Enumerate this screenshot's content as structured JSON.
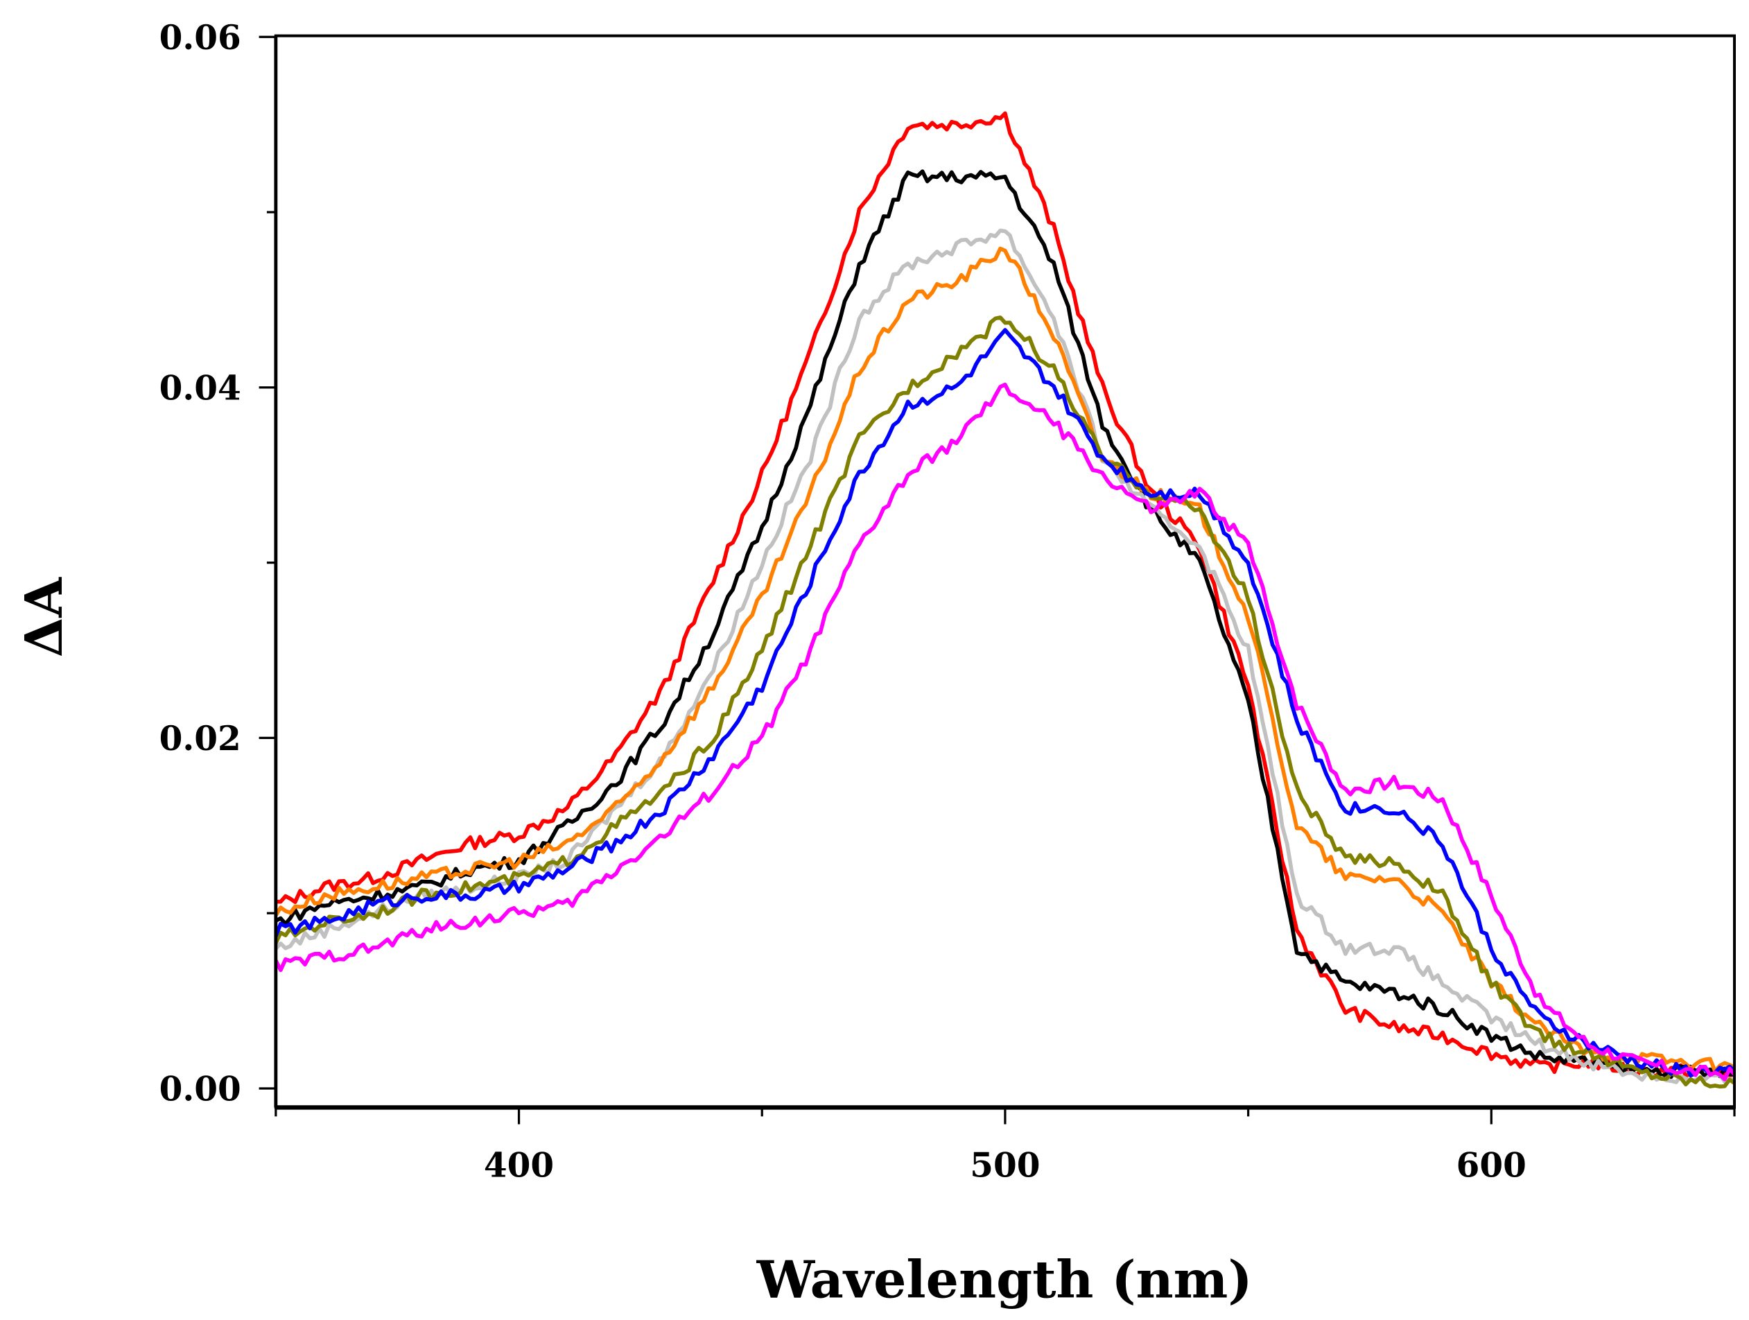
{
  "chart_data": {
    "type": "line",
    "title": "",
    "xlabel": "Wavelength (nm)",
    "ylabel": "ΔA",
    "xlim": [
      350,
      650
    ],
    "ylim": [
      -0.002,
      0.06
    ],
    "x_ticks": [
      400,
      500,
      600
    ],
    "x_tick_labels": [
      "400",
      "500",
      "600"
    ],
    "y_ticks": [
      0.0,
      0.02,
      0.04,
      0.06
    ],
    "y_tick_labels": [
      "0.00",
      "0.02",
      "0.04",
      "0.06"
    ],
    "grid": false,
    "legend": "none",
    "x": [
      350,
      360,
      370,
      380,
      390,
      400,
      410,
      420,
      430,
      440,
      450,
      460,
      470,
      480,
      490,
      500,
      510,
      520,
      530,
      540,
      550,
      560,
      570,
      580,
      590,
      600,
      610,
      620,
      630,
      640,
      650
    ],
    "series": [
      {
        "name": "red",
        "color": "#ff0000",
        "values": [
          0.0105,
          0.0115,
          0.012,
          0.013,
          0.014,
          0.0145,
          0.016,
          0.019,
          0.023,
          0.029,
          0.035,
          0.042,
          0.05,
          0.055,
          0.055,
          0.0555,
          0.049,
          0.04,
          0.034,
          0.031,
          0.023,
          0.009,
          0.0045,
          0.0035,
          0.003,
          0.002,
          0.0012,
          0.0015,
          0.001,
          0.001,
          0.0008
        ]
      },
      {
        "name": "black",
        "color": "#000000",
        "values": [
          0.0095,
          0.0105,
          0.011,
          0.0115,
          0.0125,
          0.013,
          0.015,
          0.0175,
          0.021,
          0.026,
          0.032,
          0.039,
          0.047,
          0.052,
          0.052,
          0.052,
          0.047,
          0.038,
          0.033,
          0.03,
          0.022,
          0.008,
          0.006,
          0.0055,
          0.0045,
          0.003,
          0.0018,
          0.0015,
          0.001,
          0.001,
          0.0008
        ]
      },
      {
        "name": "gray",
        "color": "#c0c0c0",
        "values": [
          0.008,
          0.009,
          0.01,
          0.011,
          0.0115,
          0.012,
          0.013,
          0.016,
          0.019,
          0.024,
          0.03,
          0.036,
          0.044,
          0.047,
          0.048,
          0.049,
          0.044,
          0.036,
          0.033,
          0.031,
          0.025,
          0.011,
          0.008,
          0.008,
          0.006,
          0.004,
          0.0025,
          0.0015,
          0.0008,
          0.0005,
          0.0005
        ]
      },
      {
        "name": "orange",
        "color": "#ff8000",
        "values": [
          0.01,
          0.011,
          0.0115,
          0.012,
          0.0125,
          0.013,
          0.014,
          0.016,
          0.019,
          0.023,
          0.028,
          0.034,
          0.041,
          0.045,
          0.046,
          0.048,
          0.043,
          0.036,
          0.034,
          0.033,
          0.027,
          0.015,
          0.012,
          0.012,
          0.01,
          0.006,
          0.0035,
          0.002,
          0.0018,
          0.0015,
          0.0012
        ]
      },
      {
        "name": "olive",
        "color": "#808000",
        "values": [
          0.0085,
          0.0095,
          0.01,
          0.011,
          0.0115,
          0.012,
          0.013,
          0.015,
          0.017,
          0.02,
          0.025,
          0.031,
          0.037,
          0.04,
          0.042,
          0.044,
          0.041,
          0.036,
          0.034,
          0.033,
          0.028,
          0.017,
          0.013,
          0.013,
          0.011,
          0.006,
          0.003,
          0.002,
          0.001,
          0.0005,
          0.0003
        ]
      },
      {
        "name": "blue",
        "color": "#0000ff",
        "values": [
          0.009,
          0.0095,
          0.0105,
          0.011,
          0.011,
          0.0115,
          0.0125,
          0.014,
          0.016,
          0.019,
          0.023,
          0.029,
          0.035,
          0.039,
          0.04,
          0.043,
          0.04,
          0.036,
          0.034,
          0.034,
          0.03,
          0.021,
          0.016,
          0.016,
          0.014,
          0.008,
          0.004,
          0.0025,
          0.0015,
          0.001,
          0.001
        ]
      },
      {
        "name": "magenta",
        "color": "#ff00ff",
        "values": [
          0.007,
          0.0075,
          0.008,
          0.009,
          0.0095,
          0.01,
          0.0105,
          0.0125,
          0.0145,
          0.017,
          0.02,
          0.025,
          0.031,
          0.035,
          0.037,
          0.04,
          0.038,
          0.035,
          0.033,
          0.034,
          0.031,
          0.022,
          0.017,
          0.0175,
          0.0165,
          0.011,
          0.005,
          0.0025,
          0.0015,
          0.001,
          0.0008
        ]
      }
    ]
  }
}
